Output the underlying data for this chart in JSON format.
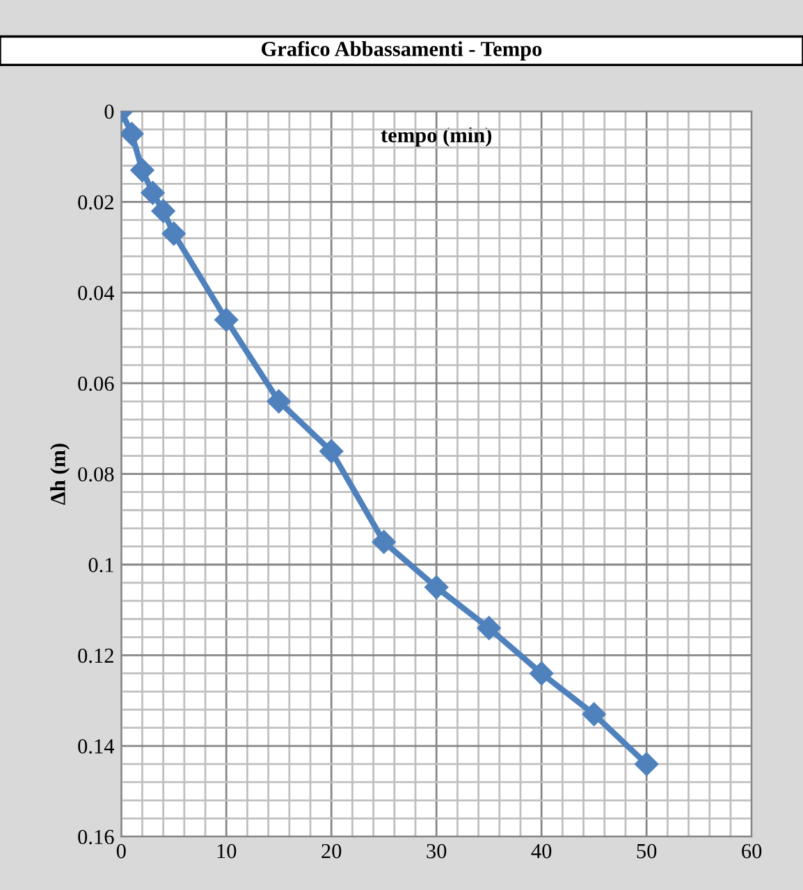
{
  "chart_data": {
    "type": "line",
    "title": "Grafico Abbassamenti - Tempo",
    "xlabel": "tempo (min)",
    "ylabel": "Δh (m)",
    "x": [
      0,
      1,
      2,
      3,
      4,
      5,
      10,
      15,
      20,
      25,
      30,
      35,
      40,
      45,
      50
    ],
    "series": [
      {
        "color": "#4f81bd",
        "values": [
          0,
          0.005,
          0.013,
          0.018,
          0.022,
          0.027,
          0.046,
          0.064,
          0.075,
          0.095,
          0.105,
          0.114,
          0.124,
          0.133,
          0.144
        ]
      }
    ],
    "xlim": [
      0,
      60
    ],
    "xticks": [
      0,
      10,
      20,
      30,
      40,
      50,
      60
    ],
    "ylim": [
      0.16,
      0
    ],
    "yticks": [
      0,
      0.02,
      0.04,
      0.06,
      0.08,
      0.1,
      0.12,
      0.14,
      0.16
    ],
    "grid": true,
    "marker": "diamond",
    "line_style": "solid"
  }
}
